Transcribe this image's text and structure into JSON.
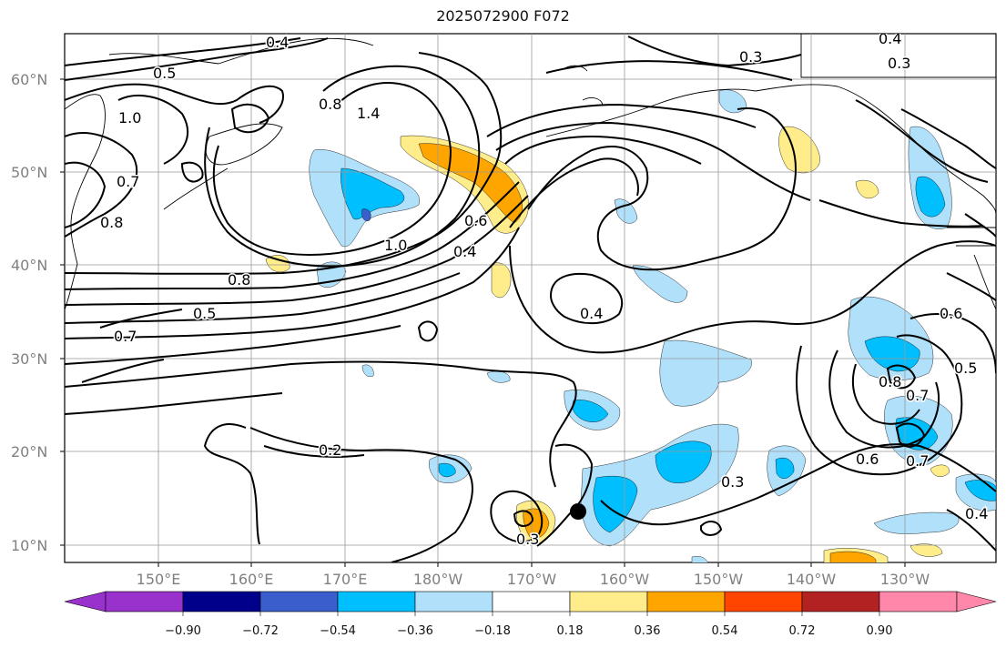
{
  "title": "2025072900 F072",
  "map": {
    "lat_labels": [
      "60°N",
      "50°N",
      "40°N",
      "30°N",
      "20°N",
      "10°N"
    ],
    "lon_labels": [
      "150°E",
      "160°E",
      "170°E",
      "180°W",
      "170°W",
      "160°W",
      "150°W",
      "140°W",
      "130°W"
    ],
    "contour_labels": [
      "0.4",
      "0.5",
      "1.0",
      "0.8",
      "1.4",
      "0.7",
      "0.8",
      "1.0",
      "0.8",
      "0.5",
      "0.7",
      "0.6",
      "0.4",
      "0.4",
      "0.3",
      "0.3",
      "0.4",
      "0.6",
      "0.8",
      "0.7",
      "0.5",
      "0.6",
      "0.7",
      "0.2",
      "0.3",
      "0.3",
      "0.4"
    ],
    "marker": "station-dot"
  },
  "colorbar": {
    "ticks": [
      "−0.90",
      "−0.72",
      "−0.54",
      "−0.36",
      "−0.18",
      "0.18",
      "0.36",
      "0.54",
      "0.72",
      "0.90"
    ],
    "colors": [
      "#9932cc",
      "#00008b",
      "#3a5fcd",
      "#00bfff",
      "#b0e0fa",
      "#ffffff",
      "#ffec8b",
      "#ffa500",
      "#ff4500",
      "#b22222",
      "#ff88aa"
    ]
  }
}
